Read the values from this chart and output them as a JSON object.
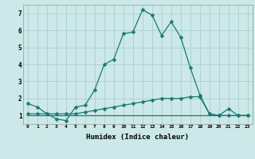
{
  "title": "",
  "xlabel": "Humidex (Indice chaleur)",
  "background_color": "#cce8e8",
  "grid_color": "#aacfcf",
  "line_color": "#1a7a6e",
  "x_values": [
    0,
    1,
    2,
    3,
    4,
    5,
    6,
    7,
    8,
    9,
    10,
    11,
    12,
    13,
    14,
    15,
    16,
    17,
    18,
    19,
    20,
    21,
    22,
    23
  ],
  "series1": [
    1.7,
    1.5,
    1.1,
    0.8,
    0.7,
    1.5,
    1.6,
    2.5,
    4.0,
    4.3,
    5.8,
    5.9,
    7.2,
    6.9,
    5.7,
    6.5,
    5.6,
    3.8,
    2.2,
    1.1,
    1.0,
    1.4,
    1.0,
    1.0
  ],
  "series2": [
    1.1,
    1.1,
    1.1,
    1.1,
    1.1,
    1.1,
    1.2,
    1.3,
    1.4,
    1.5,
    1.6,
    1.7,
    1.8,
    1.9,
    2.0,
    2.0,
    2.0,
    2.1,
    2.1,
    1.1,
    1.0,
    1.0,
    1.0,
    1.0
  ],
  "series3": [
    1.0,
    1.0,
    1.0,
    1.0,
    1.0,
    1.0,
    1.0,
    1.0,
    1.0,
    1.0,
    1.0,
    1.0,
    1.0,
    1.0,
    1.0,
    1.0,
    1.0,
    1.0,
    1.0,
    1.0,
    1.0,
    1.0,
    1.0,
    1.0
  ],
  "ylim": [
    0.5,
    7.5
  ],
  "yticks": [
    1,
    2,
    3,
    4,
    5,
    6,
    7
  ],
  "xlim": [
    -0.5,
    23.5
  ],
  "markersize": 2.5,
  "linewidth": 0.9
}
